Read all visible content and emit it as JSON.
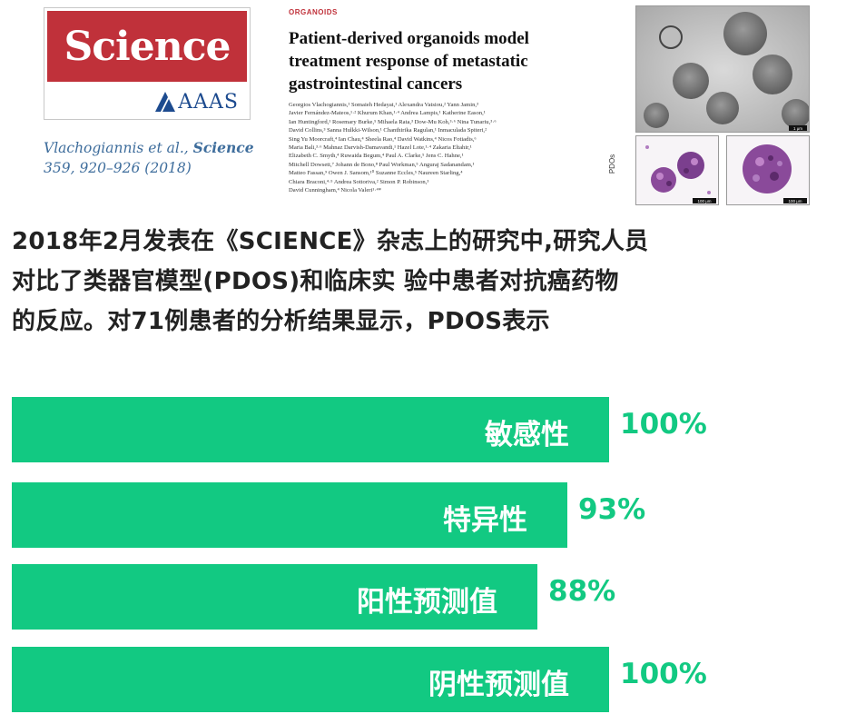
{
  "logo": {
    "word": "Science",
    "publisher": "AAAS"
  },
  "citation": {
    "authors": "Vlachogiannis et al.,",
    "journal": "Science",
    "reference": "359, 920–926 (2018)"
  },
  "paper": {
    "section": "ORGANOIDS",
    "title_lines": [
      "Patient-derived organoids model",
      "treatment response of metastatic",
      "gastrointestinal cancers"
    ],
    "author_lines": [
      "Georgios Vlachogiannis,¹ Somaieh Hedayat,¹ Alexandra Vatsiou,² Yann Jamin,³",
      "Javier Fernández-Mateos,¹·² Khurum Khan,¹·⁴ Andrea Lampis,¹ Katherine Eason,¹",
      "Ian Huntingford,¹ Rosemary Burke,⁵ Mihaela Rata,³ Dow-Mu Koh,³·⁶ Nina Tunariu,³·⁶",
      "David Collins,³ Sanna Hulkki-Wilson,¹ Chanthirika Ragulan,¹ Inmaculada Spiteri,²",
      "Sing Yu Moorcraft,⁴ Ian Chau,⁴ Sheela Rao,⁴ David Watkins,⁴ Nicos Fotiadis,⁶",
      "Maria Bali,³·⁶ Mahnaz Darvish-Damavandi,¹ Hazel Lote,¹·⁴ Zakaria Eltahir,¹",
      "Elizabeth C. Smyth,⁴ Ruwaida Begum,⁴ Paul A. Clarke,⁵ Jens C. Hahne,¹",
      "Mitchell Dowsett,⁷ Johann de Bono,⁸ Paul Workman,⁵ Anguraj Sadanandam,¹",
      "Matteo Fassan,⁹ Owen J. Sansom,¹⁰ Suzanne Eccles,⁵ Naureen Starling,⁴",
      "Chiara Braconi,⁴·⁵ Andrea Sottoriva,² Simon P. Robinson,³",
      "David Cunningham,⁴ Nicola Valeri¹·⁴*"
    ]
  },
  "micrographs": {
    "side_label": "PDOs",
    "scale_main": "1 μm",
    "scale_small": "100 μm"
  },
  "headline": {
    "lines": [
      "2018年2月发表在《SCIENCE》杂志上的研究中,研究人员",
      "对比了类器官模型(PDOS)和临床实 验中患者对抗癌药物",
      "的反应。对71例患者的分析结果显示，PDOS表示"
    ]
  },
  "chart_data": {
    "type": "bar",
    "orientation": "horizontal",
    "categories": [
      "敏感性",
      "特异性",
      "阳性预测值",
      "阴性预测值"
    ],
    "values": [
      100,
      93,
      88,
      100
    ],
    "value_labels": [
      "100%",
      "93%",
      "88%",
      "100%"
    ],
    "unit": "%",
    "xlim": [
      0,
      100
    ],
    "bar_color": "#12c982",
    "value_label_color": "#12c982",
    "category_label_color": "#ffffff",
    "grid": false,
    "legend": "none"
  },
  "colors": {
    "science_red": "#c0313a",
    "aaas_blue": "#1d4b8f",
    "citation_blue": "#3e6d9c",
    "accent_green": "#12c982"
  }
}
